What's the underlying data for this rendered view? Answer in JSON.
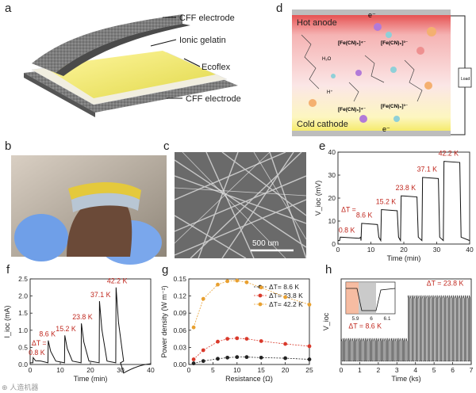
{
  "panel_labels": {
    "a": "a",
    "b": "b",
    "c": "c",
    "d": "d",
    "e": "e",
    "f": "f",
    "g": "g",
    "h": "h"
  },
  "panel_a": {
    "top_electrode": "CFF electrode",
    "gelatin": "Ionic gelatin",
    "ecoflex": "Ecoflex",
    "bottom_electrode": "CFF electrode"
  },
  "panel_c": {
    "scale_bar": "500 um"
  },
  "panel_d": {
    "hot_anode": "Hot anode",
    "cold_cathode": "Cold cathode",
    "load": "Load",
    "electron_top": "e⁻",
    "electron_bottom": "e⁻",
    "fe4_top": "[Fe(CN)₆]⁴⁻",
    "fe3_top": "[Fe(CN)₆]³⁻",
    "fe4_bottom": "[Fe(CN)₆]⁴⁻",
    "fe3_bottom": "[Fe(CN)₆]³⁻",
    "h2o": "H₂O",
    "hplus": "H⁺"
  },
  "watermark": "⊕ 人造机器",
  "colors": {
    "red": "#c0281f",
    "black": "#111111",
    "yellow": "#e8dc4a",
    "orange": "#e8a030"
  },
  "chart_data": [
    {
      "id": "e",
      "type": "line",
      "xlabel": "Time (min)",
      "ylabel": "V_ioc (mV)",
      "xlim": [
        0,
        40
      ],
      "ylim": [
        0,
        40
      ],
      "xticks": [
        0,
        10,
        20,
        30,
        40
      ],
      "yticks": [
        0,
        10,
        20,
        30,
        40
      ],
      "delta_label": "ΔT =",
      "annotations": [
        "0.8 K",
        "8.6 K",
        "15.2 K",
        "23.8 K",
        "37.1 K",
        "42.2 K"
      ],
      "steps": [
        {
          "start": 0.5,
          "end": 6.5,
          "value": 3
        },
        {
          "start": 7,
          "end": 12,
          "value": 9
        },
        {
          "start": 13,
          "end": 18,
          "value": 15
        },
        {
          "start": 19,
          "end": 24,
          "value": 21
        },
        {
          "start": 25.5,
          "end": 30.5,
          "value": 29
        },
        {
          "start": 32,
          "end": 37,
          "value": 36
        }
      ]
    },
    {
      "id": "f",
      "type": "line",
      "xlabel": "Time (min)",
      "ylabel": "I_ioc (mA)",
      "xlim": [
        0,
        40
      ],
      "ylim": [
        0,
        2.5
      ],
      "xticks": [
        0,
        10,
        20,
        30,
        40
      ],
      "yticks": [
        0,
        0.5,
        1.0,
        1.5,
        2.0,
        2.5
      ],
      "delta_label": "ΔT =",
      "annotations": [
        "0.8 K",
        "8.6 K",
        "15.2 K",
        "23.8 K",
        "37.1 K",
        "42.2 K"
      ],
      "peaks": [
        {
          "t": 1.0,
          "value": 0.2
        },
        {
          "t": 6.0,
          "value": 0.7
        },
        {
          "t": 11.5,
          "value": 0.85
        },
        {
          "t": 17.0,
          "value": 1.2
        },
        {
          "t": 23.0,
          "value": 1.85
        },
        {
          "t": 28.5,
          "value": 2.25
        }
      ]
    },
    {
      "id": "g",
      "type": "line",
      "xlabel": "Resistance (Ω)",
      "ylabel": "Power density (W m⁻²)",
      "xlim": [
        0,
        25
      ],
      "ylim": [
        0.0,
        0.15
      ],
      "xticks": [
        0,
        5,
        10,
        15,
        20,
        25
      ],
      "yticks": [
        0.0,
        0.03,
        0.06,
        0.09,
        0.12,
        0.15
      ],
      "legend_position": "top-right",
      "x": [
        1,
        3,
        6,
        8,
        10,
        12,
        15,
        20,
        25
      ],
      "series": [
        {
          "name": "ΔT= 8.6 K",
          "color": "#222222",
          "values": [
            0.002,
            0.006,
            0.01,
            0.012,
            0.013,
            0.013,
            0.012,
            0.011,
            0.009
          ]
        },
        {
          "name": "ΔT= 23.8 K",
          "color": "#d9392b",
          "values": [
            0.009,
            0.025,
            0.04,
            0.045,
            0.046,
            0.045,
            0.041,
            0.036,
            0.032
          ]
        },
        {
          "name": "ΔT= 42.2 K",
          "color": "#e8a030",
          "values": [
            0.065,
            0.115,
            0.14,
            0.146,
            0.147,
            0.144,
            0.135,
            0.118,
            0.105
          ]
        }
      ]
    },
    {
      "id": "h",
      "type": "line",
      "xlabel": "Time (ks)",
      "ylabel": "V_ioc",
      "xlim": [
        0,
        7
      ],
      "xticks": [
        0,
        1,
        2,
        3,
        4,
        5,
        6,
        7
      ],
      "regions": [
        {
          "label": "ΔT = 8.6 K",
          "start": 0,
          "end": 3.6,
          "high": 8,
          "low": 1
        },
        {
          "label": "ΔT = 23.8 K",
          "start": 3.6,
          "end": 7.0,
          "high": 21,
          "low": 1
        }
      ],
      "inset": {
        "xticks": [
          5.9,
          6.0,
          6.1
        ]
      }
    }
  ]
}
